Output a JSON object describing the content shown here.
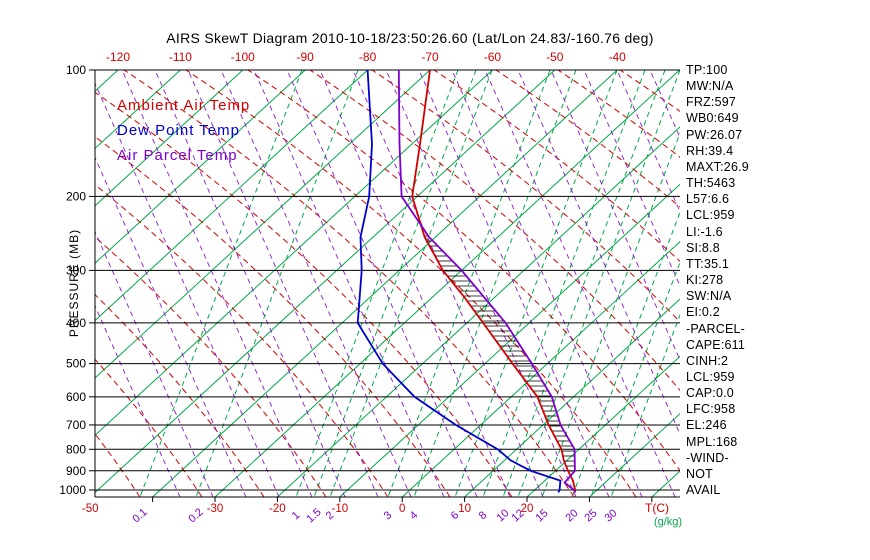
{
  "title": "AIRS SkewT Diagram 2010-10-18/23:50:26.60 (Lat/Lon 24.83/-160.76 deg)",
  "palette": {
    "ambient_red": "#d40000",
    "dewpoint_blue": "#0000cd",
    "parcel_purple": "#7d00cc",
    "isoline_green": "#00a847",
    "axis_black": "#000000"
  },
  "legend": {
    "items": [
      {
        "label": "Ambient Air Temp",
        "color_key": "ambient_red"
      },
      {
        "label": "Dew Point Temp",
        "color_key": "dewpoint_blue"
      },
      {
        "label": "Air Parcel Temp",
        "color_key": "parcel_purple"
      }
    ]
  },
  "axes": {
    "pressure_label": "PRESSURE (MB)",
    "pressure_ticks": [
      100,
      200,
      300,
      400,
      500,
      600,
      700,
      800,
      900,
      1000
    ],
    "top_temp_ticks": [
      -120,
      -110,
      -100,
      -90,
      -80,
      -70,
      -60,
      -50,
      -40
    ],
    "bottom_temp_ticks": [
      -50,
      -30,
      -20,
      -10,
      0,
      10,
      20
    ],
    "temp_unit_label": "T(C)",
    "mixing_ratio_ticks": [
      0.1,
      0.2,
      1,
      1.5,
      2,
      3,
      4,
      6,
      8,
      10,
      12,
      15,
      20,
      25,
      30
    ],
    "mixing_ratio_unit_label": "(g/kg)"
  },
  "stats_panel": {
    "lines": [
      "TP:100",
      "MW:N/A",
      "FRZ:597",
      "WB0:649",
      "PW:26.07",
      "RH:39.4",
      "MAXT:26.9",
      "TH:5463",
      "L57:6.6",
      "LCL:959",
      "LI:-1.6",
      "SI:8.8",
      "TT:35.1",
      "KI:278",
      "SW:N/A",
      "EI:0.2",
      "-PARCEL-",
      "CAPE:611",
      "CINH:2",
      "LCL:959",
      "CAP:0.0",
      "LFC:958",
      "EL:246",
      "MPL:168",
      "-WIND-",
      "NOT",
      "AVAIL"
    ]
  },
  "chart_data": {
    "type": "line",
    "variant": "skew-t-log-p",
    "title": "AIRS SkewT Diagram 2010-10-18/23:50:26.60 (Lat/Lon 24.83/-160.76 deg)",
    "xlabel": "T(C)",
    "ylabel": "PRESSURE (MB)",
    "y_scale": "log",
    "pressure_range_mb": [
      100,
      1050
    ],
    "top_axis_temp_range_c": [
      -120,
      -40
    ],
    "skew": "isotherms slant ~45deg up-right",
    "grid": {
      "isotherm_step_c": 10,
      "isotherm_color_key": "isoline_green",
      "dry_adiabat_color_key": "ambient_red",
      "moist_adiabat_color_key": "parcel_purple",
      "mixing_ratio_color_key": "isoline_green"
    },
    "series": [
      {
        "name": "Ambient Air Temp",
        "color_key": "ambient_red",
        "points_p_t": [
          [
            1013,
            26.9
          ],
          [
            1000,
            26.5
          ],
          [
            950,
            24.5
          ],
          [
            900,
            22.0
          ],
          [
            850,
            19.5
          ],
          [
            800,
            17.2
          ],
          [
            700,
            10.9
          ],
          [
            600,
            4.2
          ],
          [
            500,
            -5.6
          ],
          [
            400,
            -17.4
          ],
          [
            350,
            -24.5
          ],
          [
            300,
            -33.0
          ],
          [
            250,
            -41.7
          ],
          [
            200,
            -50.8
          ],
          [
            150,
            -58.7
          ],
          [
            100,
            -70.0
          ]
        ]
      },
      {
        "name": "Dew Point Temp",
        "color_key": "dewpoint_blue",
        "points_p_t": [
          [
            1013,
            24.2
          ],
          [
            1000,
            24.0
          ],
          [
            950,
            22.5
          ],
          [
            900,
            16.0
          ],
          [
            850,
            11.0
          ],
          [
            800,
            7.0
          ],
          [
            700,
            -4.0
          ],
          [
            600,
            -15.5
          ],
          [
            500,
            -26.4
          ],
          [
            400,
            -37.5
          ],
          [
            300,
            -46.0
          ],
          [
            250,
            -52.0
          ],
          [
            200,
            -57.7
          ],
          [
            150,
            -66.4
          ],
          [
            100,
            -80.0
          ]
        ]
      },
      {
        "name": "Air Parcel Temp",
        "color_key": "parcel_purple",
        "points_p_t": [
          [
            1013,
            26.9
          ],
          [
            1000,
            26.3
          ],
          [
            960,
            23.5
          ],
          [
            900,
            23.1
          ],
          [
            800,
            19.3
          ],
          [
            700,
            12.8
          ],
          [
            600,
            6.5
          ],
          [
            500,
            -2.5
          ],
          [
            400,
            -13.8
          ],
          [
            300,
            -30.0
          ],
          [
            250,
            -41.0
          ],
          [
            200,
            -52.5
          ],
          [
            150,
            -62.0
          ],
          [
            100,
            -75.0
          ]
        ]
      }
    ],
    "hatched_region": {
      "between": [
        "Ambient Air Temp",
        "Air Parcel Temp"
      ],
      "from_mb": 958,
      "to_mb": 246
    }
  }
}
